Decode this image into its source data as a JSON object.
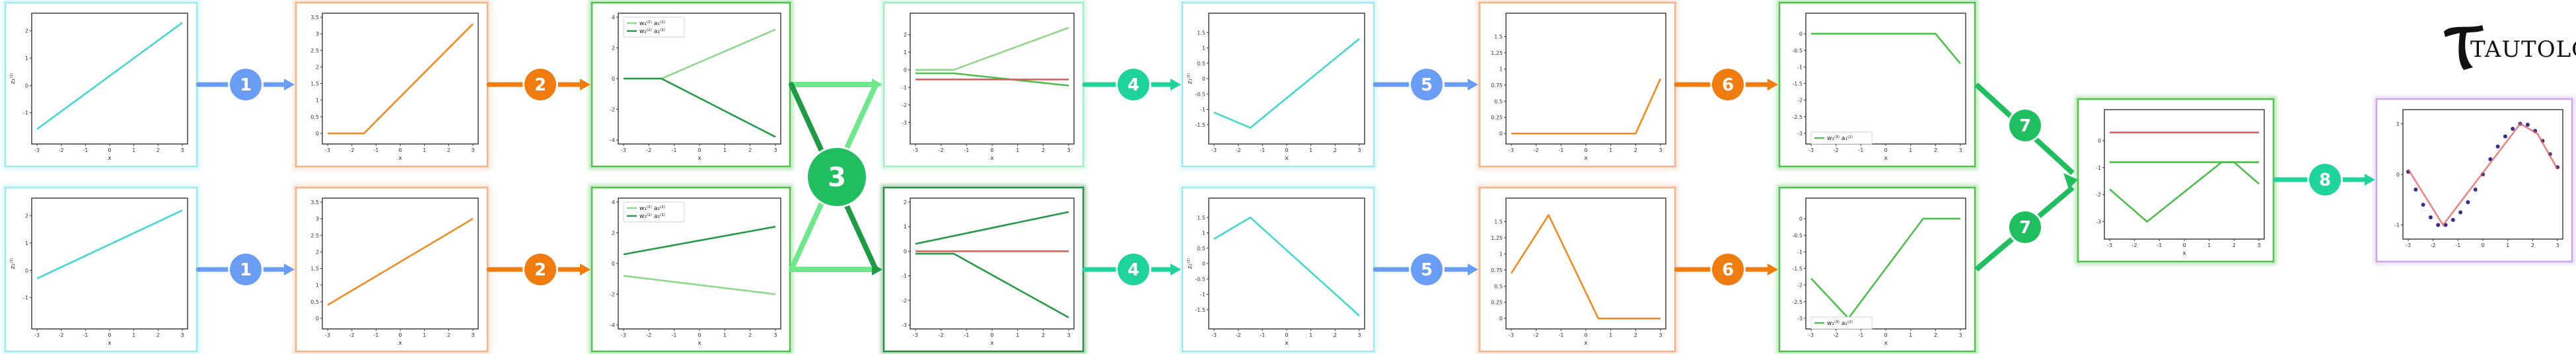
{
  "logo": {
    "text": "TAUTOLOGY"
  },
  "colors": {
    "cyan": "#3fd9cf",
    "orange": "#f28a1d",
    "green_light": "#8ed88a",
    "green_dark": "#239a45",
    "green_mid": "#4cbf4a",
    "red": "#e35b5b",
    "blue": "#6a9df5",
    "teal": "#1fd49a",
    "purple": "#3b2a8c"
  },
  "steps": [
    {
      "num": "1",
      "color": "#6a9df5"
    },
    {
      "num": "2",
      "color": "#f07c10"
    },
    {
      "num": "3",
      "color": "#1fbf60"
    },
    {
      "num": "4",
      "color": "#1fd49a"
    },
    {
      "num": "5",
      "color": "#6a9df5"
    },
    {
      "num": "6",
      "color": "#f07c10"
    },
    {
      "num": "7",
      "color": "#1fbf60"
    },
    {
      "num": "8",
      "color": "#1fd49a"
    }
  ],
  "chart_data": [
    {
      "id": "row1-linear",
      "type": "line",
      "xlabel": "x",
      "ylabel": "z₁⁽¹⁾",
      "x": [
        -3,
        3
      ],
      "xticks": [
        -3,
        -2,
        -1,
        0,
        1,
        2,
        3
      ],
      "ylim": [
        -2,
        2.5
      ],
      "yticks": [
        -1,
        0,
        1,
        2
      ],
      "series": [
        {
          "color": "cyan",
          "points": [
            [
              -3,
              -1.6
            ],
            [
              3,
              2.3
            ]
          ]
        }
      ]
    },
    {
      "id": "row1-relu",
      "type": "line",
      "xlabel": "x",
      "ylabel": "",
      "x": [
        -3,
        3
      ],
      "xticks": [
        -3,
        -2,
        -1,
        0,
        1,
        2,
        3
      ],
      "ylim": [
        -0.2,
        3.5
      ],
      "yticks": [
        0.0,
        0.5,
        1.0,
        1.5,
        2.0,
        2.5,
        3.0,
        3.5
      ],
      "series": [
        {
          "color": "orange",
          "points": [
            [
              -3,
              0
            ],
            [
              -1.5,
              0
            ],
            [
              3,
              3.3
            ]
          ]
        }
      ]
    },
    {
      "id": "row1-weighted",
      "type": "line",
      "xlabel": "x",
      "ylabel": "",
      "x": [
        -3,
        3
      ],
      "xticks": [
        -3,
        -2,
        -1,
        0,
        1,
        2,
        3
      ],
      "ylim": [
        -4,
        4
      ],
      "yticks": [
        -4,
        -2,
        0,
        2,
        4
      ],
      "legend": [
        {
          "label": "w₁⁽²⁾ a₁⁽¹⁾",
          "color": "green_light"
        },
        {
          "label": "w₂⁽²⁾ a₁⁽¹⁾",
          "color": "green_dark"
        }
      ],
      "series": [
        {
          "color": "green_light",
          "points": [
            [
              -3,
              0
            ],
            [
              -1.5,
              0
            ],
            [
              3,
              3.2
            ]
          ]
        },
        {
          "color": "green_dark",
          "points": [
            [
              -3,
              0
            ],
            [
              -1.5,
              0
            ],
            [
              3,
              -3.8
            ]
          ]
        }
      ]
    },
    {
      "id": "row1-sum",
      "type": "line",
      "xlabel": "x",
      "ylabel": "",
      "x": [
        -3,
        3
      ],
      "xticks": [
        -3,
        -2,
        -1,
        0,
        1,
        2,
        3
      ],
      "ylim": [
        -4,
        3
      ],
      "yticks": [
        -3,
        -2,
        -1,
        0,
        1,
        2
      ],
      "series": [
        {
          "color": "green_light",
          "points": [
            [
              -3,
              0
            ],
            [
              -1.5,
              0
            ],
            [
              3,
              2.4
            ]
          ]
        },
        {
          "color": "green_mid",
          "points": [
            [
              -3,
              -0.2
            ],
            [
              -1.5,
              -0.2
            ],
            [
              3,
              -0.9
            ]
          ]
        },
        {
          "color": "red",
          "points": [
            [
              -3,
              -0.55
            ],
            [
              3,
              -0.55
            ]
          ]
        }
      ]
    },
    {
      "id": "row1-z2",
      "type": "line",
      "xlabel": "x",
      "ylabel": "z₁⁽²⁾",
      "x": [
        -3,
        3
      ],
      "xticks": [
        -3,
        -2,
        -1,
        0,
        1,
        2,
        3
      ],
      "ylim": [
        -2,
        2
      ],
      "yticks": [
        -1.5,
        -1.0,
        -0.5,
        0.0,
        0.5,
        1.0,
        1.5
      ],
      "series": [
        {
          "color": "cyan",
          "points": [
            [
              -3,
              -1.1
            ],
            [
              -1.5,
              -1.6
            ],
            [
              3,
              1.3
            ]
          ]
        }
      ]
    },
    {
      "id": "row1-a2",
      "type": "line",
      "xlabel": "x",
      "ylabel": "",
      "x": [
        -3,
        3
      ],
      "xticks": [
        -3,
        -2,
        -1,
        0,
        1,
        2,
        3
      ],
      "ylim": [
        -0.1,
        1.8
      ],
      "yticks": [
        0.0,
        0.25,
        0.5,
        0.75,
        1.0,
        1.25,
        1.5
      ],
      "series": [
        {
          "color": "orange",
          "points": [
            [
              -3,
              0
            ],
            [
              2,
              0
            ],
            [
              3,
              0.85
            ]
          ]
        }
      ]
    },
    {
      "id": "row1-out",
      "type": "line",
      "xlabel": "x",
      "ylabel": "",
      "x": [
        -3,
        3
      ],
      "xticks": [
        -3,
        -2,
        -1,
        0,
        1,
        2,
        3
      ],
      "ylim": [
        -3.2,
        0.5
      ],
      "yticks": [
        -3.0,
        -2.5,
        -2.0,
        -1.5,
        -1.0,
        -0.5,
        0.0
      ],
      "legend": [
        {
          "label": "w₁⁽³⁾ a₁⁽²⁾",
          "color": "green_mid"
        }
      ],
      "series": [
        {
          "color": "green_mid",
          "points": [
            [
              -3,
              0
            ],
            [
              2,
              0
            ],
            [
              3,
              -0.9
            ]
          ]
        }
      ]
    },
    {
      "id": "row2-linear",
      "type": "line",
      "xlabel": "x",
      "ylabel": "z₂⁽¹⁾",
      "x": [
        -3,
        3
      ],
      "xticks": [
        -3,
        -2,
        -1,
        0,
        1,
        2,
        3
      ],
      "ylim": [
        -2,
        2.5
      ],
      "yticks": [
        -1,
        0,
        1,
        2
      ],
      "series": [
        {
          "color": "cyan",
          "points": [
            [
              -3,
              -0.3
            ],
            [
              3,
              2.2
            ]
          ]
        }
      ]
    },
    {
      "id": "row2-relu",
      "type": "line",
      "xlabel": "x",
      "ylabel": "",
      "x": [
        -3,
        3
      ],
      "xticks": [
        -3,
        -2,
        -1,
        0,
        1,
        2,
        3
      ],
      "ylim": [
        -0.2,
        3.5
      ],
      "yticks": [
        0.0,
        0.5,
        1.0,
        1.5,
        2.0,
        2.5,
        3.0,
        3.5
      ],
      "series": [
        {
          "color": "orange",
          "points": [
            [
              -3,
              0.4
            ],
            [
              3,
              3.0
            ]
          ]
        }
      ]
    },
    {
      "id": "row2-weighted",
      "type": "line",
      "xlabel": "x",
      "ylabel": "",
      "x": [
        -3,
        3
      ],
      "xticks": [
        -3,
        -2,
        -1,
        0,
        1,
        2,
        3
      ],
      "ylim": [
        -4,
        4
      ],
      "yticks": [
        -4,
        -2,
        0,
        2,
        4
      ],
      "legend": [
        {
          "label": "w₁⁽²⁾ a₂⁽¹⁾",
          "color": "green_light"
        },
        {
          "label": "w₂⁽²⁾ a₂⁽¹⁾",
          "color": "green_dark"
        }
      ],
      "series": [
        {
          "color": "green_light",
          "points": [
            [
              -3,
              -0.8
            ],
            [
              3,
              -2.0
            ]
          ]
        },
        {
          "color": "green_dark",
          "points": [
            [
              -3,
              0.6
            ],
            [
              3,
              2.4
            ]
          ]
        }
      ]
    },
    {
      "id": "row2-sum",
      "type": "line",
      "xlabel": "x",
      "ylabel": "",
      "x": [
        -3,
        3
      ],
      "xticks": [
        -3,
        -2,
        -1,
        0,
        1,
        2,
        3
      ],
      "ylim": [
        -3,
        2
      ],
      "yticks": [
        -3,
        -2,
        -1,
        0,
        1,
        2
      ],
      "series": [
        {
          "color": "green_dark",
          "points": [
            [
              -3,
              0.3
            ],
            [
              3,
              1.6
            ]
          ]
        },
        {
          "color": "green_dark",
          "points": [
            [
              -3,
              -0.1
            ],
            [
              -1.5,
              -0.1
            ],
            [
              3,
              -2.7
            ]
          ]
        },
        {
          "color": "red",
          "points": [
            [
              -3,
              0
            ],
            [
              3,
              0
            ]
          ]
        }
      ]
    },
    {
      "id": "row2-z2",
      "type": "line",
      "xlabel": "x",
      "ylabel": "z₂⁽²⁾",
      "x": [
        -3,
        3
      ],
      "xticks": [
        -3,
        -2,
        -1,
        0,
        1,
        2,
        3
      ],
      "ylim": [
        -2,
        2
      ],
      "yticks": [
        -1.5,
        -1.0,
        -0.5,
        0.0,
        0.5,
        1.0,
        1.5
      ],
      "series": [
        {
          "color": "cyan",
          "points": [
            [
              -3,
              0.8
            ],
            [
              -1.5,
              1.5
            ],
            [
              3,
              -1.7
            ]
          ]
        }
      ]
    },
    {
      "id": "row2-a2",
      "type": "line",
      "xlabel": "x",
      "ylabel": "",
      "x": [
        -3,
        3
      ],
      "xticks": [
        -3,
        -2,
        -1,
        0,
        1,
        2,
        3
      ],
      "ylim": [
        -0.1,
        1.8
      ],
      "yticks": [
        0.0,
        0.25,
        0.5,
        0.75,
        1.0,
        1.25,
        1.5
      ],
      "series": [
        {
          "color": "orange",
          "points": [
            [
              -3,
              0.7
            ],
            [
              -1.5,
              1.6
            ],
            [
              0.5,
              0
            ],
            [
              3,
              0
            ]
          ]
        }
      ]
    },
    {
      "id": "row2-out",
      "type": "line",
      "xlabel": "x",
      "ylabel": "",
      "x": [
        -3,
        3
      ],
      "xticks": [
        -3,
        -2,
        -1,
        0,
        1,
        2,
        3
      ],
      "ylim": [
        -3.2,
        0.5
      ],
      "yticks": [
        -3.0,
        -2.5,
        -2.0,
        -1.5,
        -1.0,
        -0.5,
        0.0
      ],
      "legend": [
        {
          "label": "w₂⁽³⁾ a₂⁽²⁾",
          "color": "green_mid"
        }
      ],
      "series": [
        {
          "color": "green_mid",
          "points": [
            [
              -3,
              -1.8
            ],
            [
              -1.5,
              -3.0
            ],
            [
              1.5,
              0
            ],
            [
              3,
              0
            ]
          ]
        }
      ]
    },
    {
      "id": "combined-sum",
      "type": "line",
      "xlabel": "x",
      "ylabel": "",
      "x": [
        -3,
        3
      ],
      "xticks": [
        -3,
        -2,
        -1,
        0,
        1,
        2,
        3
      ],
      "ylim": [
        -3.5,
        1
      ],
      "yticks": [
        -3,
        -2,
        -1,
        0
      ],
      "series": [
        {
          "color": "red",
          "points": [
            [
              -3,
              0.3
            ],
            [
              3,
              0.3
            ]
          ]
        },
        {
          "color": "green_mid",
          "points": [
            [
              -3,
              -0.8
            ],
            [
              2,
              -0.8
            ],
            [
              3,
              -1.6
            ]
          ]
        },
        {
          "color": "green_mid",
          "points": [
            [
              -3,
              -1.8
            ],
            [
              -1.5,
              -3.0
            ],
            [
              1.5,
              -0.8
            ],
            [
              3,
              -0.8
            ]
          ]
        }
      ]
    },
    {
      "id": "final-fit",
      "type": "scatter",
      "xlabel": "",
      "ylabel": "",
      "x": [
        -3,
        3
      ],
      "xticks": [
        -3,
        -2,
        -1,
        0,
        1,
        2,
        3
      ],
      "ylim": [
        -1.2,
        1.2
      ],
      "yticks": [
        -1,
        0,
        1
      ],
      "series": [
        {
          "color": "purple",
          "points": [
            [
              -3,
              0.05
            ],
            [
              -2.7,
              -0.3
            ],
            [
              -2.4,
              -0.6
            ],
            [
              -2.1,
              -0.85
            ],
            [
              -1.8,
              -1.0
            ],
            [
              -1.5,
              -1.0
            ],
            [
              -1.2,
              -0.9
            ],
            [
              -0.9,
              -0.75
            ],
            [
              -0.6,
              -0.55
            ],
            [
              -0.3,
              -0.3
            ],
            [
              0,
              0
            ],
            [
              0.3,
              0.3
            ],
            [
              0.6,
              0.55
            ],
            [
              0.9,
              0.75
            ],
            [
              1.2,
              0.9
            ],
            [
              1.5,
              1.0
            ],
            [
              1.8,
              0.98
            ],
            [
              2.1,
              0.86
            ],
            [
              2.4,
              0.66
            ],
            [
              2.7,
              0.4
            ],
            [
              3,
              0.14
            ]
          ]
        },
        {
          "color": "red",
          "points": [
            [
              -3,
              0.1
            ],
            [
              -1.6,
              -1.0
            ],
            [
              1.5,
              1.0
            ],
            [
              2.2,
              0.8
            ],
            [
              3,
              0.1
            ]
          ]
        }
      ]
    }
  ]
}
